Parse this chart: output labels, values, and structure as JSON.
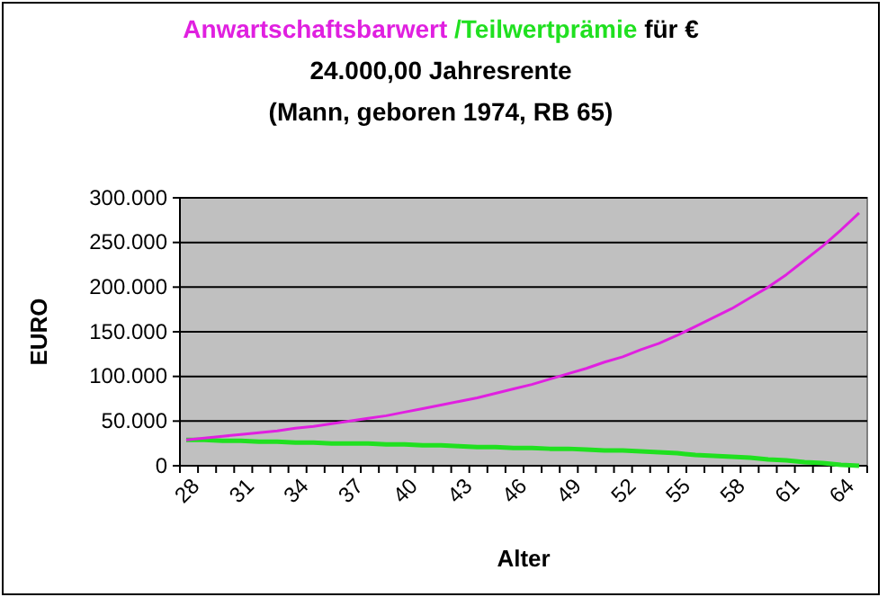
{
  "chart_data": {
    "type": "line",
    "title": "für €",
    "subtitle": "24.000,00 Jahresrente\n(Mann, geboren 1974, RB 65)",
    "xlabel": "Alter",
    "ylabel": "EURO",
    "categories": [
      "28",
      null,
      null,
      "31",
      null,
      null,
      "34",
      null,
      null,
      "37",
      null,
      null,
      "40",
      null,
      null,
      "43",
      null,
      null,
      "46",
      null,
      null,
      "49",
      null,
      null,
      "52",
      null,
      null,
      "55",
      null,
      null,
      "58",
      null,
      null,
      "61",
      null,
      null,
      "64",
      null
    ],
    "series": [
      {
        "name": "Anwartschaftsbarwert",
        "color": "#e020e0",
        "values": [
          29000,
          31000,
          33000,
          35000,
          37000,
          39000,
          42000,
          44000,
          47000,
          50000,
          53000,
          56000,
          60000,
          64000,
          68000,
          72000,
          76000,
          81000,
          86000,
          91000,
          97000,
          103000,
          109000,
          116000,
          122000,
          130000,
          137000,
          146000,
          156000,
          166000,
          176000,
          188000,
          200000,
          214000,
          230000,
          246000,
          264000,
          283000
        ]
      },
      {
        "name": "/Teilwertprämie",
        "color": "#20e020",
        "values": [
          29000,
          29000,
          28000,
          28000,
          27000,
          27000,
          26000,
          26000,
          25000,
          25000,
          25000,
          24000,
          24000,
          23000,
          23000,
          22000,
          21000,
          21000,
          20000,
          20000,
          19000,
          19000,
          18000,
          17000,
          17000,
          16000,
          15000,
          14000,
          12000,
          11000,
          10000,
          9000,
          7000,
          6000,
          4000,
          3000,
          1000,
          0
        ]
      }
    ],
    "ylim": [
      0,
      300000
    ],
    "yticks": [
      {
        "value": 0,
        "label": "0"
      },
      {
        "value": 50000,
        "label": "50.000"
      },
      {
        "value": 100000,
        "label": "100.000"
      },
      {
        "value": 150000,
        "label": "150.000"
      },
      {
        "value": 200000,
        "label": "200.000"
      },
      {
        "value": 250000,
        "label": "250.000"
      },
      {
        "value": 300000,
        "label": "300.000"
      }
    ],
    "grid": "y",
    "legend": false,
    "marker": "none",
    "line_style": "solid"
  }
}
